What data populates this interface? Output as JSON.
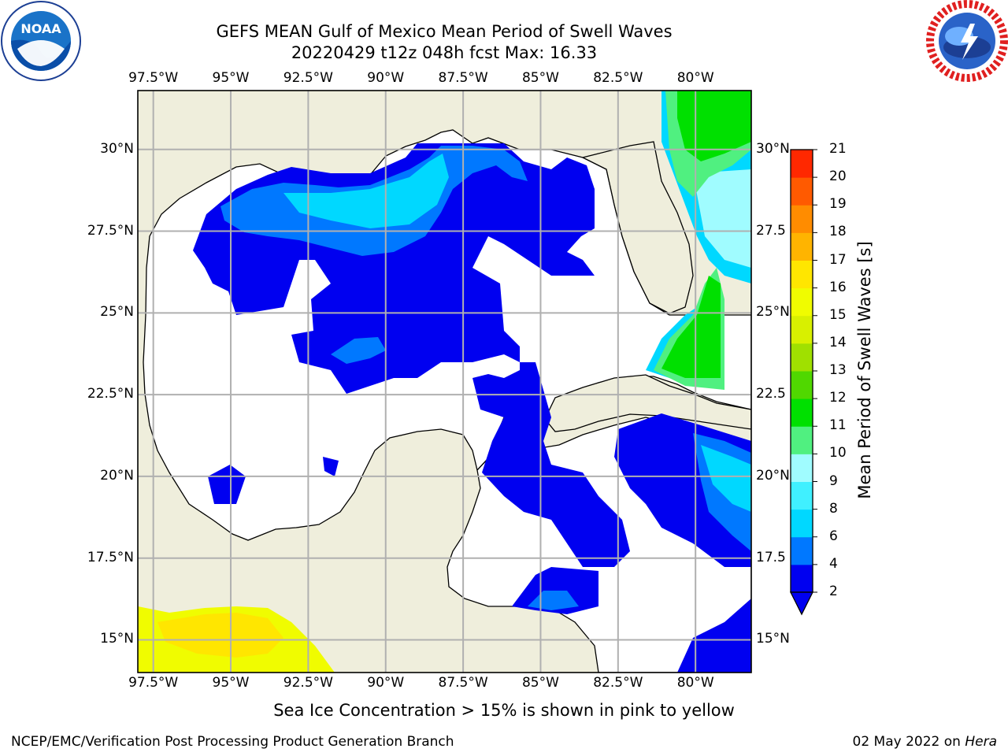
{
  "title": {
    "line1": "GEFS MEAN Gulf of Mexico Mean Period of Swell Waves",
    "line2": "20220429 t12z 048h fcst   Max: 16.33"
  },
  "logos": {
    "left": "noaa-logo",
    "left_text": "NOAA",
    "right": "nws-logo"
  },
  "map": {
    "lon_labels": [
      "97.5°W",
      "95°W",
      "92.5°W",
      "90°W",
      "87.5°W",
      "85°W",
      "82.5°W",
      "80°W"
    ],
    "lon_values": [
      -97.5,
      -95,
      -92.5,
      -90,
      -87.5,
      -85,
      -82.5,
      -80
    ],
    "lat_labels_left": [
      "30°N",
      "27.5°N",
      "25°N",
      "22.5°N",
      "20°N",
      "17.5°N",
      "15°N"
    ],
    "lat_labels_right": [
      "30°N",
      "27.5",
      "25°N",
      "22.5",
      "20°N",
      "17.5",
      "15°N"
    ],
    "lat_values": [
      30,
      27.5,
      25,
      22.5,
      20,
      17.5,
      15
    ],
    "lon_range": [
      -98,
      -78.2
    ],
    "lat_range": [
      14,
      31.8
    ],
    "grid": true,
    "colors": {
      "land": "#efeedc",
      "ocean_nodata": "#ffffff",
      "coast": "#000000",
      "grid": "#b0b0b0"
    }
  },
  "colorbar": {
    "label": "Mean Period of Swell Waves [s]",
    "ticks": [
      "2",
      "4",
      "6",
      "8",
      "9",
      "10",
      "11",
      "12",
      "13",
      "14",
      "15",
      "16",
      "17",
      "18",
      "19",
      "20",
      "21"
    ],
    "colors": [
      "#0000f0",
      "#0078ff",
      "#00d8ff",
      "#40f0ff",
      "#a0fcff",
      "#50f080",
      "#00e000",
      "#50d800",
      "#a0e000",
      "#d8f000",
      "#f0fc00",
      "#ffe600",
      "#ffb400",
      "#ff8c00",
      "#ff5a00",
      "#ff2800",
      "#f00000"
    ]
  },
  "note": "Sea Ice Concentration > 15% is shown in pink to yellow",
  "footer": {
    "left": "NCEP/EMC/Verification Post Processing Product Generation Branch",
    "right_date": "02 May 2022 on ",
    "right_host": "Hera"
  }
}
